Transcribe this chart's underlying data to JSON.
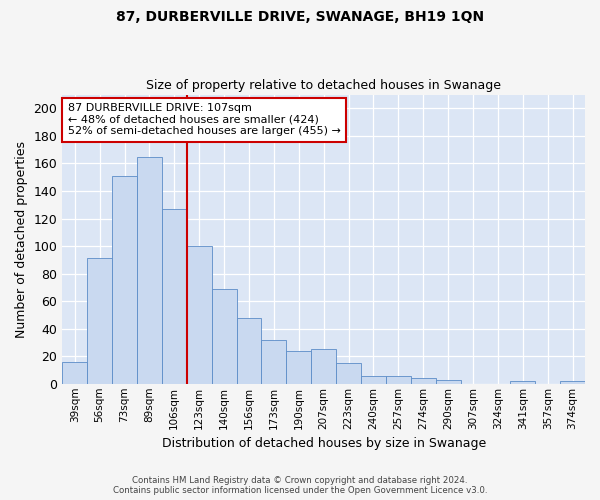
{
  "title": "87, DURBERVILLE DRIVE, SWANAGE, BH19 1QN",
  "subtitle": "Size of property relative to detached houses in Swanage",
  "xlabel": "Distribution of detached houses by size in Swanage",
  "ylabel": "Number of detached properties",
  "bar_labels": [
    "39sqm",
    "56sqm",
    "73sqm",
    "89sqm",
    "106sqm",
    "123sqm",
    "140sqm",
    "156sqm",
    "173sqm",
    "190sqm",
    "207sqm",
    "223sqm",
    "240sqm",
    "257sqm",
    "274sqm",
    "290sqm",
    "307sqm",
    "324sqm",
    "341sqm",
    "357sqm",
    "374sqm"
  ],
  "bar_values": [
    16,
    91,
    151,
    165,
    127,
    100,
    69,
    48,
    32,
    24,
    25,
    15,
    6,
    6,
    4,
    3,
    0,
    0,
    2,
    0,
    2
  ],
  "bar_color": "#c9d9f0",
  "bar_edge_color": "#5b8cc8",
  "vline_x_index": 4,
  "vline_color": "#cc0000",
  "annotation_text": "87 DURBERVILLE DRIVE: 107sqm\n← 48% of detached houses are smaller (424)\n52% of semi-detached houses are larger (455) →",
  "annotation_box_color": "#ffffff",
  "annotation_box_edge": "#cc0000",
  "ylim": [
    0,
    210
  ],
  "yticks": [
    0,
    20,
    40,
    60,
    80,
    100,
    120,
    140,
    160,
    180,
    200
  ],
  "background_color": "#dce6f5",
  "fig_background_color": "#f5f5f5",
  "grid_color": "#ffffff",
  "footer_line1": "Contains HM Land Registry data © Crown copyright and database right 2024.",
  "footer_line2": "Contains public sector information licensed under the Open Government Licence v3.0."
}
